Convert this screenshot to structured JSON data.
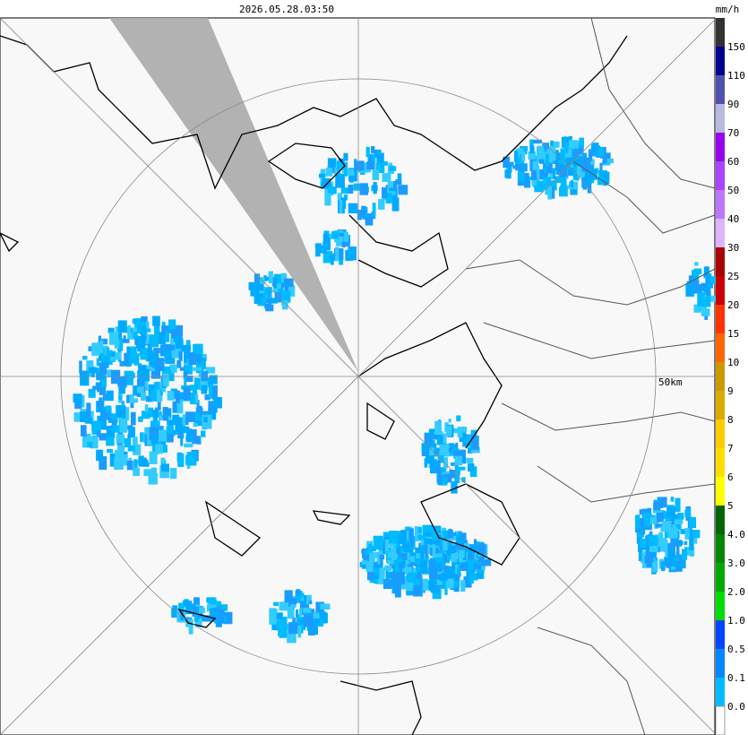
{
  "header": {
    "timestamp": "2026.05.28.03:50",
    "unit": "mm/h"
  },
  "map": {
    "range_label": "50km"
  },
  "legend": {
    "items": [
      {
        "label": null,
        "color": "#333333"
      },
      {
        "label": "150",
        "color": "#000090"
      },
      {
        "label": "110",
        "color": "#5050b0"
      },
      {
        "label": "90",
        "color": "#b8b8e0"
      },
      {
        "label": "70",
        "color": "#9900ee"
      },
      {
        "label": "60",
        "color": "#aa44ff"
      },
      {
        "label": "50",
        "color": "#bb77ff"
      },
      {
        "label": "40",
        "color": "#ddb4ff"
      },
      {
        "label": "30",
        "color": "#aa0000"
      },
      {
        "label": "25",
        "color": "#cc0000"
      },
      {
        "label": "20",
        "color": "#ff3300"
      },
      {
        "label": "15",
        "color": "#ff6600"
      },
      {
        "label": "10",
        "color": "#cc9900"
      },
      {
        "label": "9",
        "color": "#ddaa00"
      },
      {
        "label": "8",
        "color": "#ffcc00"
      },
      {
        "label": "7",
        "color": "#ffdd00"
      },
      {
        "label": "6",
        "color": "#ffff00"
      },
      {
        "label": "5",
        "color": "#006600"
      },
      {
        "label": "4.0",
        "color": "#008800"
      },
      {
        "label": "3.0",
        "color": "#00aa00"
      },
      {
        "label": "2.0",
        "color": "#00dd00"
      },
      {
        "label": "1.0",
        "color": "#0044ff"
      },
      {
        "label": "0.5",
        "color": "#0088ff"
      },
      {
        "label": "0.1",
        "color": "#00bbff"
      },
      {
        "label": "0.0",
        "color": "#ffffff"
      }
    ]
  }
}
